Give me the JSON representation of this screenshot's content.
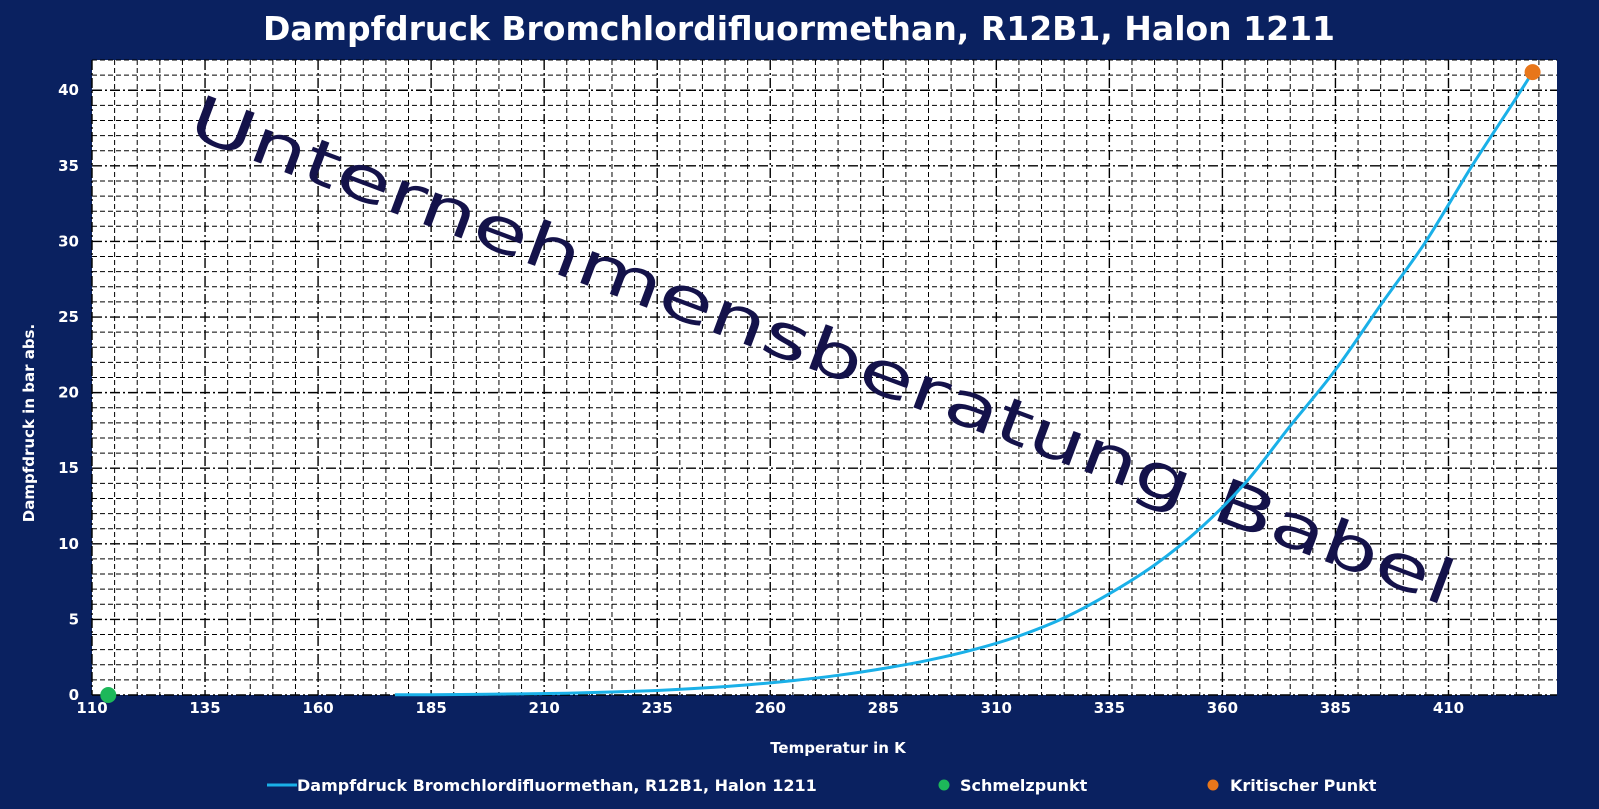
{
  "chart_data": {
    "type": "line",
    "title": "Dampfdruck Bromchlordifluormethan, R12B1, Halon 1211",
    "xlabel": "Temperatur in K",
    "ylabel": "Dampfdruck in bar abs.",
    "xlim": [
      110,
      434
    ],
    "ylim": [
      0,
      42
    ],
    "xticks": [
      110,
      135,
      160,
      185,
      210,
      235,
      260,
      285,
      310,
      335,
      360,
      385,
      410
    ],
    "yticks": [
      0,
      5,
      10,
      15,
      20,
      25,
      30,
      35,
      40
    ],
    "grid": true,
    "legend_position": "bottom",
    "watermark": "Unternehmensberatung Babel",
    "series": [
      {
        "name": "Dampfdruck Bromchlordifluormethan, R12B1, Halon 1211",
        "color": "#1ab0e8",
        "x": [
          177,
          185,
          195,
          205,
          215,
          225,
          235,
          245,
          255,
          265,
          275,
          285,
          295,
          305,
          315,
          325,
          335,
          345,
          355,
          365,
          375,
          385,
          395,
          405,
          415,
          425,
          428.6
        ],
        "y": [
          0.01,
          0.02,
          0.04,
          0.07,
          0.12,
          0.2,
          0.3,
          0.46,
          0.67,
          0.95,
          1.3,
          1.75,
          2.3,
          3.0,
          3.9,
          5.1,
          6.7,
          8.6,
          11.0,
          14.0,
          17.8,
          21.5,
          25.8,
          30.0,
          34.9,
          39.5,
          41.2
        ]
      },
      {
        "name": "Schmelzpunkt",
        "color": "#1db85a",
        "type": "scatter",
        "x": [
          113.6
        ],
        "y": [
          0
        ]
      },
      {
        "name": "Kritischer Punkt",
        "color": "#e8761a",
        "type": "scatter",
        "x": [
          428.6
        ],
        "y": [
          41.2
        ]
      }
    ]
  }
}
